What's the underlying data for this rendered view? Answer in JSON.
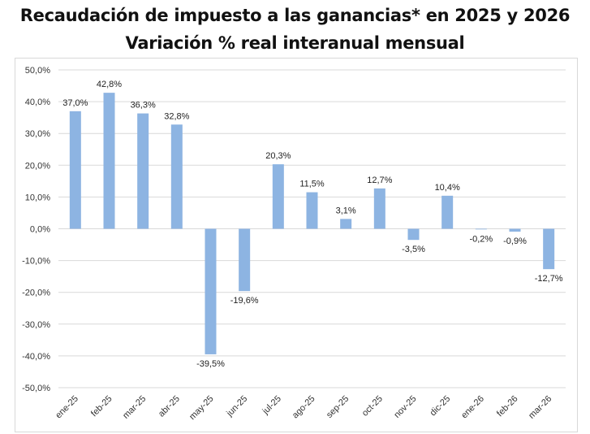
{
  "chart_data": {
    "type": "bar",
    "title": "Recaudación  de impuesto a las ganancias* en 2025 y 2026",
    "subtitle": "Variación % real interanual mensual",
    "xlabel": "",
    "ylabel": "",
    "categories": [
      "ene-25",
      "feb-25",
      "mar-25",
      "abr-25",
      "may-25",
      "jun-25",
      "jul-25",
      "ago-25",
      "sep-25",
      "oct-25",
      "nov-25",
      "dic-25",
      "ene-26",
      "feb-26",
      "mar-26"
    ],
    "values": [
      37.0,
      42.8,
      36.3,
      32.8,
      -39.5,
      -19.6,
      20.3,
      11.5,
      3.1,
      12.7,
      -3.5,
      10.4,
      -0.2,
      -0.9,
      -12.7
    ],
    "data_labels": [
      "37,0%",
      "42,8%",
      "36,3%",
      "32,8%",
      "-39,5%",
      "-19,6%",
      "20,3%",
      "11,5%",
      "3,1%",
      "12,7%",
      "-3,5%",
      "10,4%",
      "-0,2%",
      "-0,9%",
      "-12,7%"
    ],
    "ylim": [
      -50,
      50
    ],
    "yticks": [
      50,
      40,
      30,
      20,
      10,
      0,
      -10,
      -20,
      -30,
      -40,
      -50
    ],
    "ytick_labels": [
      "50,0%",
      "40,0%",
      "30,0%",
      "20,0%",
      "10,0%",
      "0,0%",
      "-10,0%",
      "-20,0%",
      "-30,0%",
      "-40,0%",
      "-50,0%"
    ],
    "grid": true,
    "legend": "none",
    "bar_color": "#8DB4E2",
    "grid_color": "#D9D9D9"
  }
}
